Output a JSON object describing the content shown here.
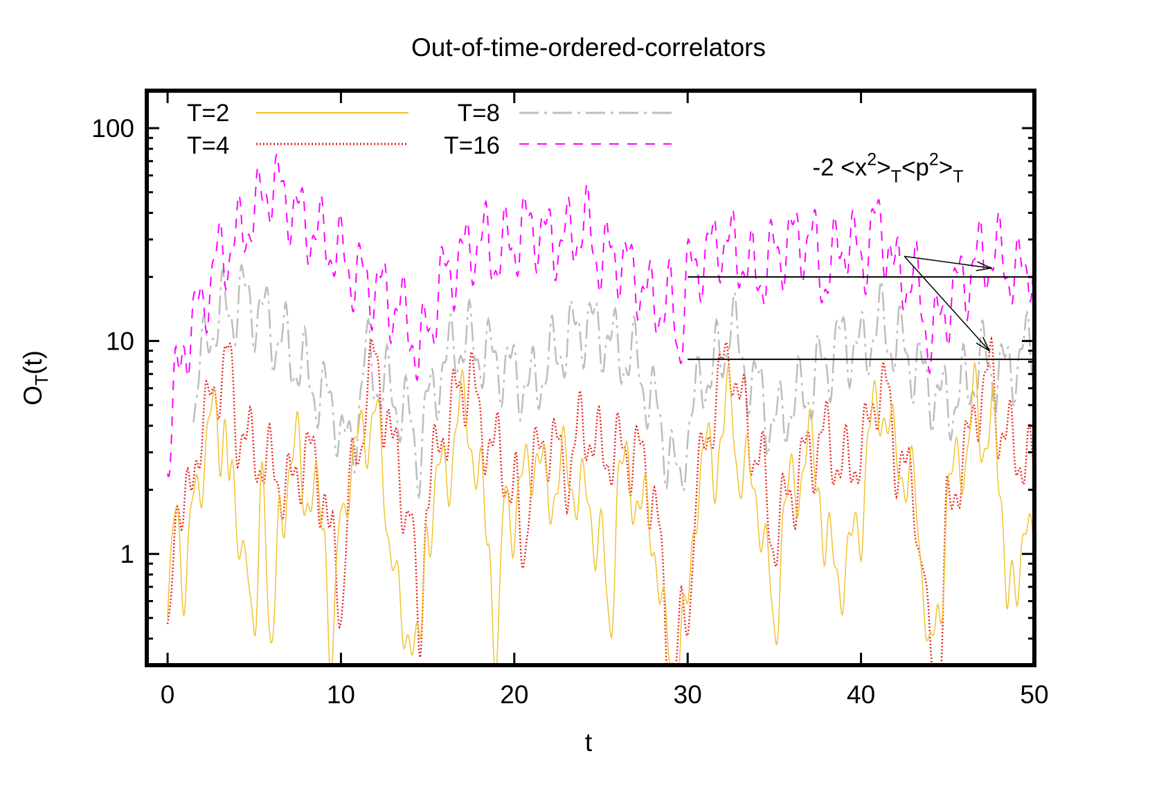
{
  "chart_data": {
    "type": "line",
    "title": "Out-of-time-ordered-correlators",
    "xlabel": "t",
    "ylabel": {
      "main": "O",
      "sub": "T",
      "tail": "(t)"
    },
    "xlim": [
      -1.2,
      50
    ],
    "ylim": [
      0.3,
      150
    ],
    "yscale": "log",
    "x_ticks": [
      "0",
      "10",
      "20",
      "30",
      "40",
      "50"
    ],
    "y_ticks": [
      "1",
      "10",
      "100"
    ],
    "grid": false,
    "legend_position": "top-left",
    "series": [
      {
        "name": "T=2",
        "color": "#f2c12e",
        "dash": "solid",
        "anchors": [
          [
            0,
            0.5
          ],
          [
            0.5,
            1.5
          ],
          [
            1,
            0.8
          ],
          [
            1.5,
            1.6
          ],
          [
            2.5,
            4.5
          ],
          [
            3,
            3
          ],
          [
            3.3,
            5
          ],
          [
            3.6,
            2.5
          ],
          [
            4,
            1
          ],
          [
            4.5,
            1.4
          ],
          [
            5,
            0.3
          ],
          [
            5.5,
            3
          ],
          [
            6,
            0.3
          ],
          [
            6.5,
            1.5
          ],
          [
            7,
            2.5
          ],
          [
            7.5,
            3
          ],
          [
            8,
            2
          ],
          [
            9,
            1.5
          ],
          [
            9.5,
            0.3
          ],
          [
            10,
            1.5
          ],
          [
            10.5,
            2.5
          ],
          [
            11.5,
            4
          ],
          [
            12,
            4.5
          ],
          [
            12.5,
            2
          ],
          [
            13,
            1
          ],
          [
            13.5,
            0.4
          ],
          [
            14,
            0.5
          ],
          [
            14.5,
            0.3
          ],
          [
            15,
            1.5
          ],
          [
            16,
            2.5
          ],
          [
            17.2,
            5
          ],
          [
            18,
            2
          ],
          [
            18.5,
            1.3
          ],
          [
            19,
            0.3
          ],
          [
            19.5,
            2
          ],
          [
            20,
            1.5
          ],
          [
            21,
            3
          ],
          [
            22,
            2
          ],
          [
            23,
            2.5
          ],
          [
            24,
            1.8
          ],
          [
            25,
            1.2
          ],
          [
            25.5,
            0.4
          ],
          [
            26,
            2.5
          ],
          [
            27,
            2
          ],
          [
            28,
            1.2
          ],
          [
            29,
            0.3
          ],
          [
            30,
            0.5
          ],
          [
            30.5,
            2
          ],
          [
            31,
            3
          ],
          [
            31.5,
            2.5
          ],
          [
            32,
            4
          ],
          [
            32.5,
            5
          ],
          [
            33,
            2.5
          ],
          [
            34,
            2
          ],
          [
            34.5,
            1
          ],
          [
            35,
            0.4
          ],
          [
            35.5,
            1.5
          ],
          [
            36,
            2
          ],
          [
            37,
            3
          ],
          [
            37.5,
            2.5
          ],
          [
            38,
            1
          ],
          [
            39,
            0.8
          ],
          [
            40,
            1.5
          ],
          [
            40.5,
            3.5
          ],
          [
            41,
            5.5
          ],
          [
            42,
            3
          ],
          [
            43,
            2
          ],
          [
            43.5,
            1
          ],
          [
            44,
            0.3
          ],
          [
            44.5,
            0.5
          ],
          [
            45,
            2
          ],
          [
            46,
            3
          ],
          [
            46.5,
            5
          ],
          [
            47,
            3.5
          ],
          [
            47.5,
            4.5
          ],
          [
            48,
            2
          ],
          [
            48.5,
            0.8
          ],
          [
            49,
            0.5
          ],
          [
            49.5,
            2
          ],
          [
            50,
            1
          ]
        ]
      },
      {
        "name": "T=4",
        "color": "#e8201a",
        "dash": "dotted",
        "anchors": [
          [
            0,
            0.3
          ],
          [
            0.5,
            2
          ],
          [
            1,
            1.5
          ],
          [
            2,
            4
          ],
          [
            2.5,
            5
          ],
          [
            3,
            7
          ],
          [
            3.5,
            8
          ],
          [
            4,
            4
          ],
          [
            5,
            3
          ],
          [
            6,
            2.5
          ],
          [
            7,
            2
          ],
          [
            8,
            3
          ],
          [
            9,
            2
          ],
          [
            9.5,
            1
          ],
          [
            10,
            0.6
          ],
          [
            10.5,
            2
          ],
          [
            11,
            3
          ],
          [
            11.5,
            6
          ],
          [
            12,
            8
          ],
          [
            12.5,
            5
          ],
          [
            13,
            3
          ],
          [
            14,
            1.5
          ],
          [
            14.5,
            0.4
          ],
          [
            15,
            2
          ],
          [
            16,
            4
          ],
          [
            17,
            6
          ],
          [
            17.5,
            7
          ],
          [
            18,
            4
          ],
          [
            19,
            3
          ],
          [
            20,
            2
          ],
          [
            20.5,
            1
          ],
          [
            21,
            2.5
          ],
          [
            22,
            3.5
          ],
          [
            23,
            2.5
          ],
          [
            24,
            4
          ],
          [
            25,
            3
          ],
          [
            26,
            3
          ],
          [
            27,
            3
          ],
          [
            28,
            2
          ],
          [
            29,
            0.3
          ],
          [
            30,
            0.5
          ],
          [
            30.5,
            2
          ],
          [
            31,
            3
          ],
          [
            31.5,
            5
          ],
          [
            32,
            7
          ],
          [
            32.5,
            9
          ],
          [
            33,
            5
          ],
          [
            34,
            3
          ],
          [
            35,
            1.2
          ],
          [
            36,
            2
          ],
          [
            37,
            3
          ],
          [
            38,
            3.5
          ],
          [
            39,
            2.5
          ],
          [
            40,
            3
          ],
          [
            41,
            6
          ],
          [
            41.5,
            5.5
          ],
          [
            42,
            3
          ],
          [
            43,
            2
          ],
          [
            43.5,
            1
          ],
          [
            44,
            0.3
          ],
          [
            44.5,
            0.3
          ],
          [
            45,
            1.5
          ],
          [
            46,
            3
          ],
          [
            47,
            6
          ],
          [
            47.5,
            7
          ],
          [
            48,
            4
          ],
          [
            49,
            3
          ],
          [
            50,
            2.5
          ]
        ]
      },
      {
        "name": "T=8",
        "color": "#bdbdbd",
        "dash": "dashdot",
        "anchors": [
          [
            1.5,
            5
          ],
          [
            2,
            8
          ],
          [
            2.5,
            12
          ],
          [
            3.5,
            14
          ],
          [
            4.5,
            16
          ],
          [
            5.5,
            13
          ],
          [
            6.5,
            10
          ],
          [
            7.5,
            8
          ],
          [
            8.5,
            6
          ],
          [
            9.5,
            5
          ],
          [
            10.5,
            3
          ],
          [
            11.5,
            8
          ],
          [
            12.5,
            6
          ],
          [
            13.5,
            5
          ],
          [
            14.5,
            3
          ],
          [
            15,
            5
          ],
          [
            16,
            8
          ],
          [
            17,
            10
          ],
          [
            18,
            9
          ],
          [
            19,
            8
          ],
          [
            20,
            7
          ],
          [
            21,
            6
          ],
          [
            22,
            8
          ],
          [
            23,
            10
          ],
          [
            24,
            12
          ],
          [
            25,
            11
          ],
          [
            26,
            9
          ],
          [
            27,
            8
          ],
          [
            28,
            5
          ],
          [
            29,
            3
          ],
          [
            29.5,
            2
          ],
          [
            30,
            4
          ],
          [
            31,
            7
          ],
          [
            32,
            8
          ],
          [
            32.5,
            14
          ],
          [
            33,
            8
          ],
          [
            34,
            6
          ],
          [
            35,
            4
          ],
          [
            36,
            5
          ],
          [
            37,
            6
          ],
          [
            38,
            8
          ],
          [
            39,
            10
          ],
          [
            40,
            9
          ],
          [
            41,
            12
          ],
          [
            42,
            10
          ],
          [
            43,
            8
          ],
          [
            44,
            6
          ],
          [
            45,
            5
          ],
          [
            46,
            6
          ],
          [
            47,
            8
          ],
          [
            48,
            7
          ],
          [
            49,
            8
          ],
          [
            50,
            10
          ]
        ]
      },
      {
        "name": "T=16",
        "color": "#ff00ff",
        "dash": "dashed",
        "anchors": [
          [
            0,
            3
          ],
          [
            0.5,
            6
          ],
          [
            1,
            10
          ],
          [
            1.5,
            12
          ],
          [
            2,
            15
          ],
          [
            2.5,
            20
          ],
          [
            3,
            25
          ],
          [
            4,
            30
          ],
          [
            5,
            40
          ],
          [
            6,
            55
          ],
          [
            7,
            45
          ],
          [
            8,
            35
          ],
          [
            9,
            30
          ],
          [
            10,
            25
          ],
          [
            11,
            20
          ],
          [
            12,
            18
          ],
          [
            13,
            15
          ],
          [
            14,
            12
          ],
          [
            14.5,
            8
          ],
          [
            15,
            12
          ],
          [
            16,
            20
          ],
          [
            17,
            25
          ],
          [
            18,
            30
          ],
          [
            19,
            25
          ],
          [
            20,
            30
          ],
          [
            21,
            35
          ],
          [
            22,
            30
          ],
          [
            23,
            30
          ],
          [
            24,
            35
          ],
          [
            25,
            25
          ],
          [
            26,
            25
          ],
          [
            27,
            20
          ],
          [
            28,
            15
          ],
          [
            29,
            15
          ],
          [
            29.5,
            10
          ],
          [
            30,
            20
          ],
          [
            31,
            25
          ],
          [
            32,
            30
          ],
          [
            33,
            25
          ],
          [
            34,
            20
          ],
          [
            35,
            25
          ],
          [
            36,
            30
          ],
          [
            37,
            30
          ],
          [
            38,
            20
          ],
          [
            39,
            30
          ],
          [
            40,
            25
          ],
          [
            41,
            35
          ],
          [
            41.5,
            30
          ],
          [
            42,
            20
          ],
          [
            43,
            20
          ],
          [
            43.5,
            15
          ],
          [
            44,
            10
          ],
          [
            45,
            15
          ],
          [
            46,
            20
          ],
          [
            47,
            25
          ],
          [
            48,
            25
          ],
          [
            49,
            20
          ],
          [
            50,
            25
          ]
        ]
      }
    ],
    "hlines": [
      {
        "x": [
          30,
          50
        ],
        "y": 20
      },
      {
        "x": [
          30,
          50
        ],
        "y": 8.2
      }
    ],
    "annotation": {
      "lead": "-2 <x",
      "sup1": "2",
      "mid1": ">",
      "sub1": "T",
      "mid2": "<p",
      "sup2": "2",
      "mid3": ">",
      "sub2": "T",
      "text_at": [
        37.2,
        60
      ],
      "arrow_from": [
        42.5,
        25
      ],
      "arrow_to": [
        [
          47.5,
          22
        ],
        [
          47.4,
          9
        ]
      ]
    }
  }
}
